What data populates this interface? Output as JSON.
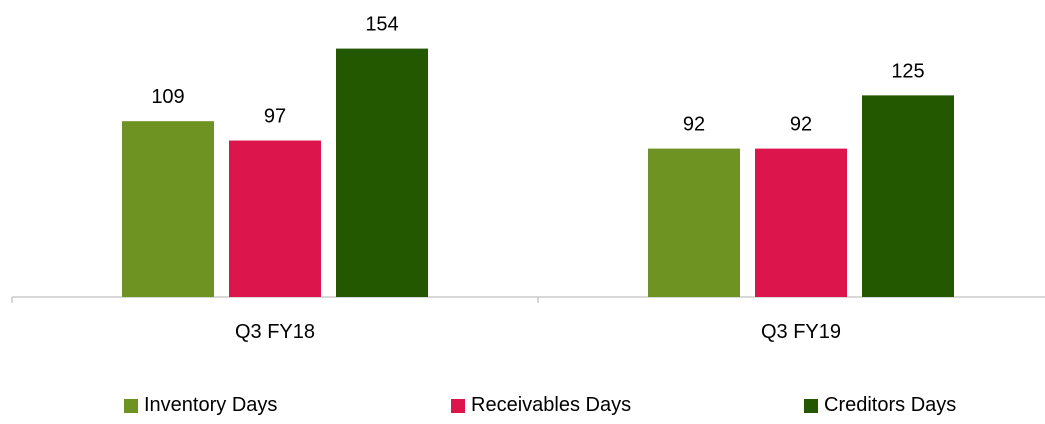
{
  "chart_data": {
    "type": "bar",
    "categories": [
      "Q3 FY18",
      "Q3 FY19"
    ],
    "series": [
      {
        "name": "Inventory Days",
        "values": [
          109,
          92
        ],
        "color": "#6e9323"
      },
      {
        "name": "Receivables Days",
        "values": [
          97,
          92
        ],
        "color": "#dc164d"
      },
      {
        "name": "Creditors Days",
        "values": [
          154,
          125
        ],
        "color": "#245800"
      }
    ],
    "title": "",
    "xlabel": "",
    "ylabel": "",
    "ylim": [
      0,
      184
    ],
    "grid": false,
    "legend_position": "bottom"
  }
}
